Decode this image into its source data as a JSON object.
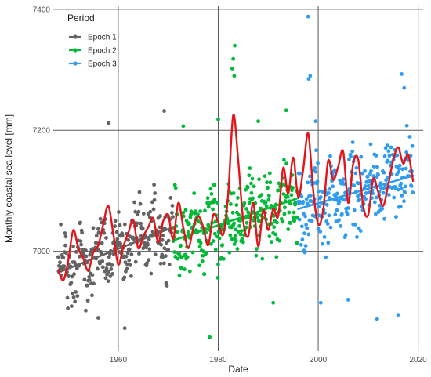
{
  "chart_data": {
    "type": "scatter",
    "xlabel": "Date",
    "ylabel": "Monthly coastal sea level [mm]",
    "xlim": [
      1947,
      2021
    ],
    "ylim": [
      6835,
      7405
    ],
    "x_ticks": [
      1960,
      1980,
      2000,
      2020
    ],
    "y_ticks": [
      7000,
      7200,
      7400
    ],
    "x_tick_labels": [
      "1960",
      "1980",
      "2000",
      "2020"
    ],
    "y_tick_labels": [
      "7000",
      "7200",
      "7400"
    ],
    "grid": true,
    "legend": {
      "title": "Period",
      "placement": "top-left",
      "entries": [
        "Epoch 1",
        "Epoch 2",
        "Epoch 3"
      ]
    },
    "series": [
      {
        "name": "Epoch 1",
        "color": "#636363",
        "x_range": [
          1948,
          1971
        ],
        "trend": {
          "x": [
            1948,
            1971
          ],
          "y": [
            6965,
            7040
          ]
        },
        "sample": {
          "start": 1948,
          "step": 0.0833,
          "count": 276,
          "base_start": 6965,
          "base_end": 7040,
          "spread": 55
        },
        "outliers": [
          [
            1958.1,
            7212
          ],
          [
            1969.2,
            7232
          ],
          [
            1953.5,
            6902
          ],
          [
            1961.3,
            6873
          ],
          [
            1956.0,
            6890
          ]
        ]
      },
      {
        "name": "Epoch 2",
        "color": "#00ba38",
        "x_range": [
          1971,
          1996
        ],
        "trend": {
          "x": [
            1971,
            1996
          ],
          "y": [
            7018,
            7088
          ]
        },
        "sample": {
          "start": 1971,
          "step": 0.0833,
          "count": 300,
          "base_start": 7018,
          "base_end": 7088,
          "spread": 60
        },
        "outliers": [
          [
            1983.3,
            7340
          ],
          [
            1983.0,
            7318
          ],
          [
            1982.8,
            7302
          ],
          [
            1983.2,
            7290
          ],
          [
            1980.0,
            7218
          ],
          [
            1988.0,
            7215
          ],
          [
            1973.0,
            7207
          ],
          [
            1978.3,
            6858
          ],
          [
            1991.0,
            6915
          ],
          [
            1993.6,
            7233
          ]
        ]
      },
      {
        "name": "Epoch 3",
        "color": "#2f9cf0",
        "x_range": [
          1996,
          2019
        ],
        "trend": {
          "x": [
            1996,
            2019
          ],
          "y": [
            7070,
            7125
          ]
        },
        "sample": {
          "start": 1996,
          "step": 0.0833,
          "count": 276,
          "base_start": 7070,
          "base_end": 7125,
          "spread": 60
        },
        "outliers": [
          [
            1998.0,
            7388
          ],
          [
            1998.4,
            7290
          ],
          [
            1998.1,
            7285
          ],
          [
            2016.7,
            7293
          ],
          [
            2017.2,
            7270
          ],
          [
            1999.5,
            7215
          ],
          [
            2000.5,
            6915
          ],
          [
            2006.0,
            6920
          ],
          [
            2016.0,
            6895
          ],
          [
            2011.8,
            6888
          ]
        ]
      }
    ],
    "smooth": {
      "color": "#e3151a",
      "x": [
        1948,
        1949,
        1950,
        1951,
        1952,
        1953,
        1954,
        1955,
        1956,
        1957,
        1958,
        1959,
        1960,
        1961,
        1962,
        1963,
        1964,
        1965,
        1966,
        1967,
        1968,
        1969,
        1970,
        1971,
        1972,
        1973,
        1974,
        1975,
        1976,
        1977,
        1978,
        1979,
        1980,
        1981,
        1982,
        1983,
        1984,
        1985,
        1986,
        1987,
        1988,
        1989,
        1990,
        1991,
        1992,
        1993,
        1994,
        1995,
        1996,
        1997,
        1998,
        1999,
        2000,
        2001,
        2002,
        2003,
        2004,
        2005,
        2006,
        2007,
        2008,
        2009,
        2010,
        2011,
        2012,
        2013,
        2014,
        2015,
        2016,
        2017,
        2018,
        2019
      ],
      "y": [
        6970,
        6952,
        6985,
        7035,
        7005,
        6988,
        6968,
        6998,
        7010,
        7045,
        7075,
        7030,
        6978,
        7008,
        7030,
        7052,
        7005,
        7025,
        7040,
        7055,
        7015,
        7050,
        7060,
        7020,
        7080,
        7040,
        7005,
        7038,
        7058,
        7040,
        7010,
        7060,
        7048,
        7028,
        7095,
        7225,
        7150,
        7050,
        7025,
        7080,
        7008,
        7068,
        7035,
        7070,
        7058,
        7138,
        7095,
        7155,
        7090,
        7135,
        7195,
        7100,
        7045,
        7068,
        7150,
        7118,
        7140,
        7165,
        7080,
        7145,
        7152,
        7075,
        7060,
        7120,
        7098,
        7075,
        7110,
        7150,
        7172,
        7145,
        7160,
        7115
      ]
    }
  }
}
